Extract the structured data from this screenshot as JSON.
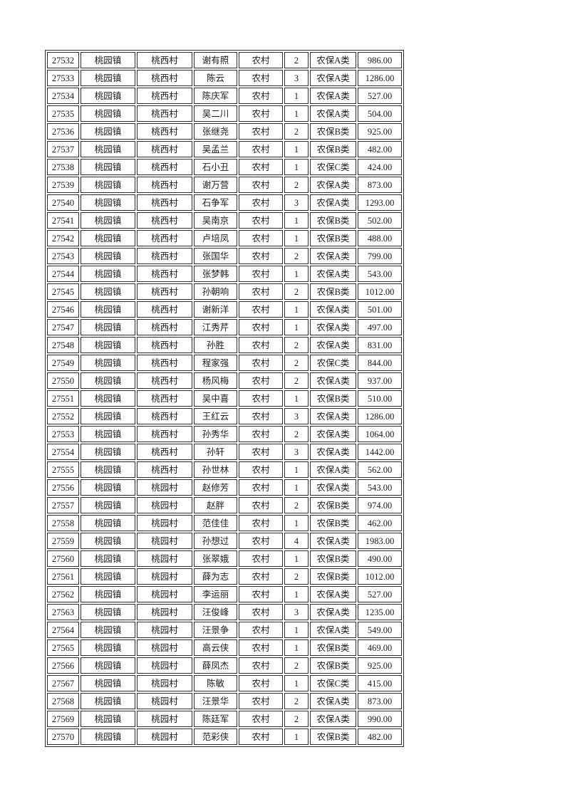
{
  "page": {
    "background": "#ffffff",
    "text_color": "#1c1c1c",
    "border_color": "#2b2b2b"
  },
  "table": {
    "column_keys": [
      "id",
      "town",
      "village",
      "name",
      "residence",
      "count",
      "category",
      "amount"
    ],
    "rows": [
      [
        "27532",
        "桃园镇",
        "桃西村",
        "谢有照",
        "农村",
        "2",
        "农保A类",
        "986.00"
      ],
      [
        "27533",
        "桃园镇",
        "桃西村",
        "陈云",
        "农村",
        "3",
        "农保A类",
        "1286.00"
      ],
      [
        "27534",
        "桃园镇",
        "桃西村",
        "陈庆军",
        "农村",
        "1",
        "农保A类",
        "527.00"
      ],
      [
        "27535",
        "桃园镇",
        "桃西村",
        "吴二川",
        "农村",
        "1",
        "农保A类",
        "504.00"
      ],
      [
        "27536",
        "桃园镇",
        "桃西村",
        "张继尧",
        "农村",
        "2",
        "农保B类",
        "925.00"
      ],
      [
        "27537",
        "桃园镇",
        "桃西村",
        "吴孟兰",
        "农村",
        "1",
        "农保B类",
        "482.00"
      ],
      [
        "27538",
        "桃园镇",
        "桃西村",
        "石小丑",
        "农村",
        "1",
        "农保C类",
        "424.00"
      ],
      [
        "27539",
        "桃园镇",
        "桃西村",
        "谢万营",
        "农村",
        "2",
        "农保A类",
        "873.00"
      ],
      [
        "27540",
        "桃园镇",
        "桃西村",
        "石争军",
        "农村",
        "3",
        "农保A类",
        "1293.00"
      ],
      [
        "27541",
        "桃园镇",
        "桃西村",
        "吴南京",
        "农村",
        "1",
        "农保B类",
        "502.00"
      ],
      [
        "27542",
        "桃园镇",
        "桃西村",
        "卢培凤",
        "农村",
        "1",
        "农保B类",
        "488.00"
      ],
      [
        "27543",
        "桃园镇",
        "桃西村",
        "张国华",
        "农村",
        "2",
        "农保A类",
        "799.00"
      ],
      [
        "27544",
        "桃园镇",
        "桃西村",
        "张梦韩",
        "农村",
        "1",
        "农保A类",
        "543.00"
      ],
      [
        "27545",
        "桃园镇",
        "桃西村",
        "孙朝响",
        "农村",
        "2",
        "农保B类",
        "1012.00"
      ],
      [
        "27546",
        "桃园镇",
        "桃西村",
        "谢新洋",
        "农村",
        "1",
        "农保A类",
        "501.00"
      ],
      [
        "27547",
        "桃园镇",
        "桃西村",
        "江秀芹",
        "农村",
        "1",
        "农保A类",
        "497.00"
      ],
      [
        "27548",
        "桃园镇",
        "桃西村",
        "孙胜",
        "农村",
        "2",
        "农保A类",
        "831.00"
      ],
      [
        "27549",
        "桃园镇",
        "桃西村",
        "程家强",
        "农村",
        "2",
        "农保C类",
        "844.00"
      ],
      [
        "27550",
        "桃园镇",
        "桃西村",
        "杨风梅",
        "农村",
        "2",
        "农保A类",
        "937.00"
      ],
      [
        "27551",
        "桃园镇",
        "桃西村",
        "吴中喜",
        "农村",
        "1",
        "农保B类",
        "510.00"
      ],
      [
        "27552",
        "桃园镇",
        "桃西村",
        "王红云",
        "农村",
        "3",
        "农保A类",
        "1286.00"
      ],
      [
        "27553",
        "桃园镇",
        "桃西村",
        "孙秀华",
        "农村",
        "2",
        "农保A类",
        "1064.00"
      ],
      [
        "27554",
        "桃园镇",
        "桃西村",
        "孙轩",
        "农村",
        "3",
        "农保A类",
        "1442.00"
      ],
      [
        "27555",
        "桃园镇",
        "桃西村",
        "孙世林",
        "农村",
        "1",
        "农保A类",
        "562.00"
      ],
      [
        "27556",
        "桃园镇",
        "桃园村",
        "赵修芳",
        "农村",
        "1",
        "农保A类",
        "543.00"
      ],
      [
        "27557",
        "桃园镇",
        "桃园村",
        "赵胖",
        "农村",
        "2",
        "农保B类",
        "974.00"
      ],
      [
        "27558",
        "桃园镇",
        "桃园村",
        "范佳佳",
        "农村",
        "1",
        "农保B类",
        "462.00"
      ],
      [
        "27559",
        "桃园镇",
        "桃园村",
        "孙想过",
        "农村",
        "4",
        "农保A类",
        "1983.00"
      ],
      [
        "27560",
        "桃园镇",
        "桃园村",
        "张翠娥",
        "农村",
        "1",
        "农保B类",
        "490.00"
      ],
      [
        "27561",
        "桃园镇",
        "桃园村",
        "薛为志",
        "农村",
        "2",
        "农保B类",
        "1012.00"
      ],
      [
        "27562",
        "桃园镇",
        "桃园村",
        "李运丽",
        "农村",
        "1",
        "农保A类",
        "527.00"
      ],
      [
        "27563",
        "桃园镇",
        "桃园村",
        "汪俊峰",
        "农村",
        "3",
        "农保A类",
        "1235.00"
      ],
      [
        "27564",
        "桃园镇",
        "桃园村",
        "汪景争",
        "农村",
        "1",
        "农保A类",
        "549.00"
      ],
      [
        "27565",
        "桃园镇",
        "桃园村",
        "高云侠",
        "农村",
        "1",
        "农保B类",
        "469.00"
      ],
      [
        "27566",
        "桃园镇",
        "桃园村",
        "薛凤杰",
        "农村",
        "2",
        "农保B类",
        "925.00"
      ],
      [
        "27567",
        "桃园镇",
        "桃园村",
        "陈敏",
        "农村",
        "1",
        "农保C类",
        "415.00"
      ],
      [
        "27568",
        "桃园镇",
        "桃园村",
        "汪景华",
        "农村",
        "2",
        "农保A类",
        "873.00"
      ],
      [
        "27569",
        "桃园镇",
        "桃园村",
        "陈廷军",
        "农村",
        "2",
        "农保A类",
        "990.00"
      ],
      [
        "27570",
        "桃园镇",
        "桃园村",
        "范彩侠",
        "农村",
        "1",
        "农保B类",
        "482.00"
      ]
    ]
  }
}
